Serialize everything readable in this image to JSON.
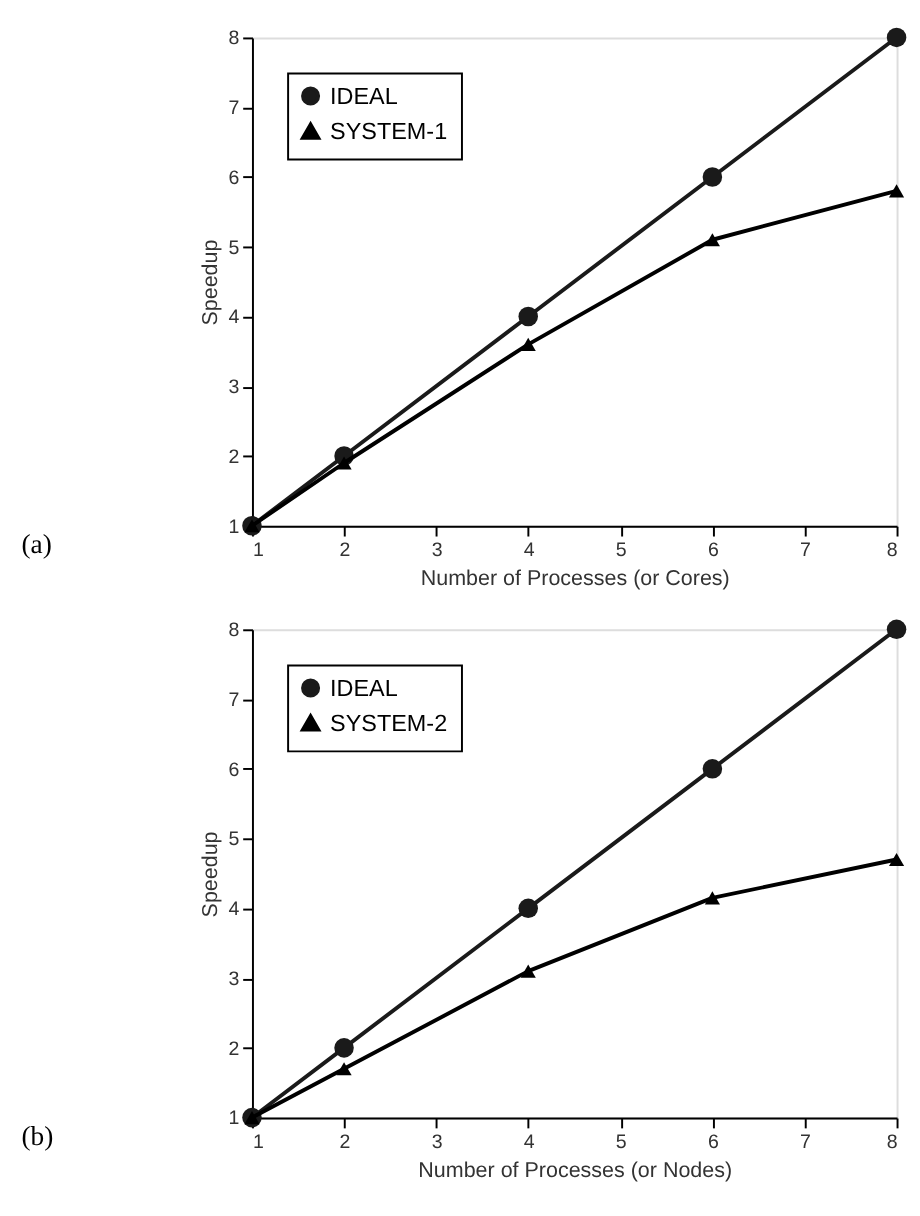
{
  "chart_data": [
    {
      "type": "line",
      "xlabel": "Number of Processes (or Cores)",
      "ylabel": "Speedup",
      "x": [
        1,
        2,
        4,
        6,
        8
      ],
      "xlim": [
        1,
        8
      ],
      "xticks": [
        1,
        2,
        3,
        4,
        5,
        6,
        7,
        8
      ],
      "ylim": [
        1,
        8
      ],
      "yticks": [
        1,
        2,
        3,
        4,
        5,
        6,
        7,
        8
      ],
      "grid": false,
      "legend": "top left",
      "annotations": [
        "(a)"
      ],
      "series": [
        {
          "name": "IDEAL",
          "color": "#1a1a1a",
          "marker": "circle",
          "values": [
            1,
            2,
            4,
            6,
            8
          ]
        },
        {
          "name": "SYSTEM-1",
          "color": "#000000",
          "marker": "triangle",
          "values": [
            1,
            1.9,
            3.6,
            5.1,
            5.8
          ]
        }
      ]
    },
    {
      "type": "line",
      "xlabel": "Number of Processes (or Nodes)",
      "ylabel": "Speedup",
      "x": [
        1,
        2,
        4,
        6,
        8
      ],
      "xlim": [
        1,
        8
      ],
      "xticks": [
        1,
        2,
        3,
        4,
        5,
        6,
        7,
        8
      ],
      "ylim": [
        1,
        8
      ],
      "yticks": [
        1,
        2,
        3,
        4,
        5,
        6,
        7,
        8
      ],
      "grid": false,
      "legend": "top left",
      "annotations": [
        "(b)"
      ],
      "series": [
        {
          "name": "IDEAL",
          "color": "#1a1a1a",
          "marker": "circle",
          "values": [
            1,
            2,
            4,
            6,
            8
          ]
        },
        {
          "name": "SYSTEM-2",
          "color": "#000000",
          "marker": "triangle",
          "values": [
            1,
            1.7,
            3.1,
            4.15,
            4.7
          ]
        }
      ]
    }
  ]
}
